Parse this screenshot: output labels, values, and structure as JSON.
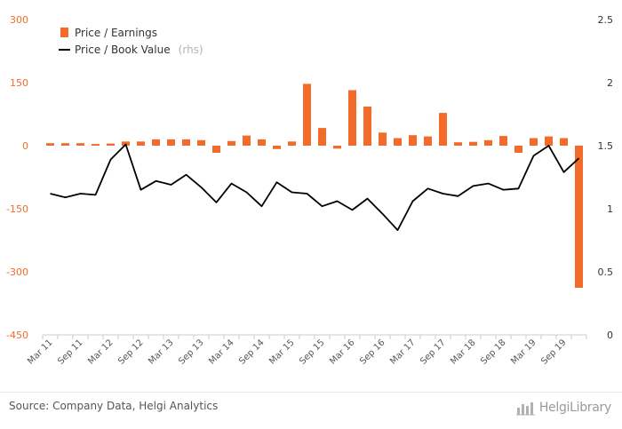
{
  "chart_data": {
    "type": "bar+line",
    "categories": [
      "Mar 11",
      "Jun 11",
      "Sep 11",
      "Dec 11",
      "Mar 12",
      "Jun 12",
      "Sep 12",
      "Dec 12",
      "Mar 13",
      "Jun 13",
      "Sep 13",
      "Dec 13",
      "Mar 14",
      "Jun 14",
      "Sep 14",
      "Dec 14",
      "Mar 15",
      "Jun 15",
      "Sep 15",
      "Dec 15",
      "Mar 16",
      "Jun 16",
      "Sep 16",
      "Dec 16",
      "Mar 17",
      "Jun 17",
      "Sep 17",
      "Dec 17",
      "Mar 18",
      "Jun 18",
      "Sep 18",
      "Dec 18",
      "Mar 19",
      "Jun 19",
      "Sep 19",
      "Dec 19"
    ],
    "x_tick_labels": [
      "Mar 11",
      "Sep 11",
      "Mar 12",
      "Sep 12",
      "Mar 13",
      "Sep 13",
      "Mar 14",
      "Sep 14",
      "Mar 15",
      "Sep 15",
      "Mar 16",
      "Sep 16",
      "Mar 17",
      "Sep 17",
      "Mar 18",
      "Sep 18",
      "Mar 19",
      "Sep 19"
    ],
    "series": [
      {
        "name": "Price / Earnings",
        "kind": "bar",
        "axis": "left",
        "color": "#f26b2b",
        "values": [
          6,
          6,
          6,
          4,
          5,
          10,
          10,
          15,
          15,
          15,
          13,
          -17,
          11,
          24,
          15,
          -8,
          10,
          147,
          42,
          -7,
          132,
          93,
          31,
          18,
          25,
          22,
          78,
          8,
          9,
          13,
          23,
          -17,
          18,
          22,
          18,
          -338
        ]
      },
      {
        "name": "Price / Book Value",
        "rhs_label": "(rhs)",
        "kind": "line",
        "axis": "right",
        "color": "#000000",
        "values": [
          1.12,
          1.09,
          1.12,
          1.11,
          1.39,
          1.51,
          1.15,
          1.22,
          1.19,
          1.27,
          1.17,
          1.05,
          1.2,
          1.13,
          1.02,
          1.21,
          1.13,
          1.12,
          1.02,
          1.06,
          0.99,
          1.08,
          0.96,
          0.83,
          1.06,
          1.16,
          1.12,
          1.1,
          1.18,
          1.2,
          1.15,
          1.16,
          1.42,
          1.5,
          1.29,
          1.4
        ]
      }
    ],
    "y_left": {
      "ticks": [
        "300",
        "150",
        "0",
        "-150",
        "-300",
        "-450"
      ],
      "ylim": [
        -450,
        300
      ]
    },
    "y_right": {
      "ticks": [
        "2.5",
        "2",
        "1.5",
        "1",
        "0.5",
        "0"
      ],
      "ylim": [
        0,
        2.5
      ]
    },
    "legend_placement": "top-left",
    "grid": false
  },
  "footer": {
    "source": "Source: Company Data, Helgi Analytics",
    "logo_text": "HelgiLibrary"
  }
}
